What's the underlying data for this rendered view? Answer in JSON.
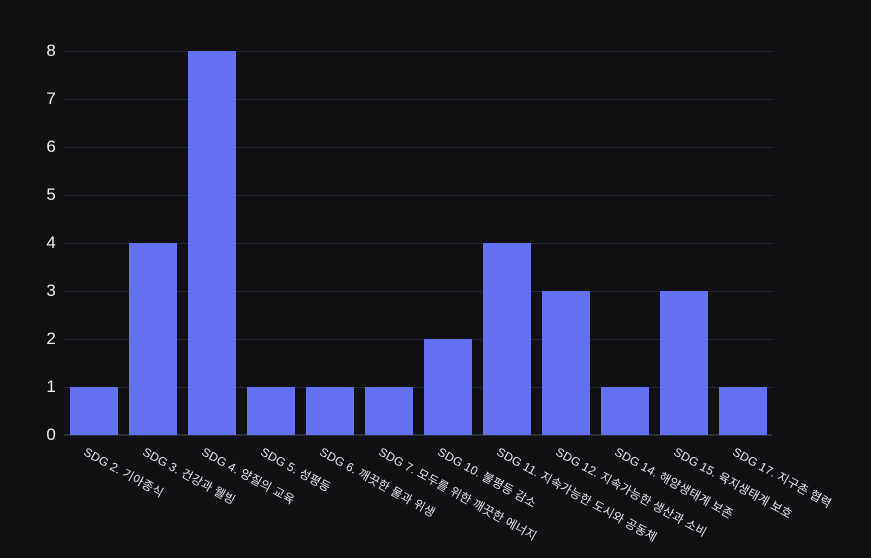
{
  "chart_data": {
    "type": "bar",
    "title": "",
    "xlabel": "",
    "ylabel": "",
    "categories": [
      "SDG 2. 기아종식",
      "SDG 3. 건강과 웰빙",
      "SDG 4. 양질의 교육",
      "SDG 5. 성평등",
      "SDG 6. 깨끗한 물과 위생",
      "SDG 7. 모두를 위한 깨끗한 에너지",
      "SDG 10. 불평등 감소",
      "SDG 11. 지속가능한 도시와 공동체",
      "SDG 12. 지속가능한 생산과 소비",
      "SDG 14. 해양생태계 보존",
      "SDG 15. 육지생태계 보호",
      "SDG 17. 지구촌 협력"
    ],
    "values": [
      1,
      4,
      8,
      1,
      1,
      1,
      2,
      4,
      3,
      1,
      3,
      1
    ],
    "ylim": [
      0,
      8
    ],
    "yticks": [
      0,
      1,
      2,
      3,
      4,
      5,
      6,
      7,
      8
    ],
    "grid": true,
    "legend": false,
    "x_tick_rotation_deg": -29,
    "colors": {
      "background": "#111113",
      "bar": "#6471F3",
      "gridline": "#242734",
      "axis_line": "#2c3039",
      "y_tick_label": "#efeff2",
      "x_tick_label": "#e9e9ee"
    }
  }
}
